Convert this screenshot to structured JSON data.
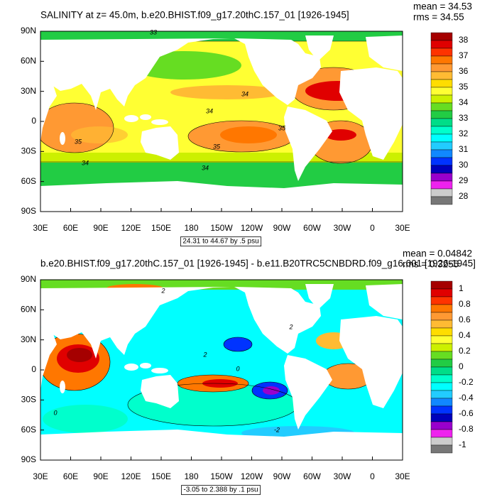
{
  "panels": [
    {
      "title": "SALINITY at z=  45.0m, b.e20.BHIST.f09_g17.20thC.157_01 [1926-1945]",
      "stats": [
        "mean = 34.53",
        "rms = 34.55"
      ],
      "lat_labels": [
        "90N",
        "60N",
        "30N",
        "0",
        "30S",
        "60S",
        "90S"
      ],
      "lon_labels": [
        "30E",
        "60E",
        "90E",
        "120E",
        "150E",
        "180",
        "150W",
        "120W",
        "90W",
        "60W",
        "30W",
        "0",
        "30E"
      ],
      "contour_labels": [
        "33",
        "34",
        "34",
        "35",
        "35",
        "35",
        "34",
        "34"
      ],
      "range_note": "24.31 to 44.67 by .5 psu",
      "colorbar": {
        "labels": [
          "38",
          "37",
          "36",
          "35",
          "34",
          "33",
          "32",
          "31",
          "30",
          "29",
          "28"
        ],
        "colors": [
          "#a50000",
          "#e00000",
          "#ff3300",
          "#ff7700",
          "#ff9933",
          "#ffbb33",
          "#ffdd00",
          "#ffff33",
          "#ccf000",
          "#66dd22",
          "#22cc44",
          "#00dd88",
          "#00ffcc",
          "#00ffff",
          "#22ccff",
          "#1188ff",
          "#0033ff",
          "#0000bb",
          "#9900cc",
          "#ee22ee",
          "#cccccc",
          "#777777"
        ]
      }
    },
    {
      "title": "b.e20.BHIST.f09_g17.20thC.157_01 [1926-1945] - b.e11.B20TRC5CNBDRD.f09_g16.001 [1926-1945]",
      "stats": [
        "mean = 0.04842",
        "rms = 0.3255"
      ],
      "lat_labels": [
        "90N",
        "60N",
        "30N",
        "0",
        "30S",
        "60S",
        "90S"
      ],
      "lon_labels": [
        "30E",
        "60E",
        "90E",
        "120E",
        "150E",
        "180",
        "150W",
        "120W",
        "90W",
        "60W",
        "30W",
        "0",
        "30E"
      ],
      "contour_labels": [
        "2",
        "2",
        "0",
        "0",
        "-2",
        "2"
      ],
      "range_note": "-3.05 to 2.388 by .1 psu",
      "colorbar": {
        "labels": [
          "1",
          "0.8",
          "0.6",
          "0.4",
          "0.2",
          "0",
          "-0.2",
          "-0.4",
          "-0.6",
          "-0.8",
          "-1"
        ],
        "colors": [
          "#a50000",
          "#e00000",
          "#ff3300",
          "#ff7700",
          "#ff9933",
          "#ffbb33",
          "#ffdd00",
          "#ffff33",
          "#ccf000",
          "#66dd22",
          "#22cc44",
          "#00dd88",
          "#00ffcc",
          "#00ffff",
          "#22ccff",
          "#1188ff",
          "#0033ff",
          "#0000bb",
          "#9900cc",
          "#ee22ee",
          "#cccccc",
          "#777777"
        ]
      }
    }
  ]
}
